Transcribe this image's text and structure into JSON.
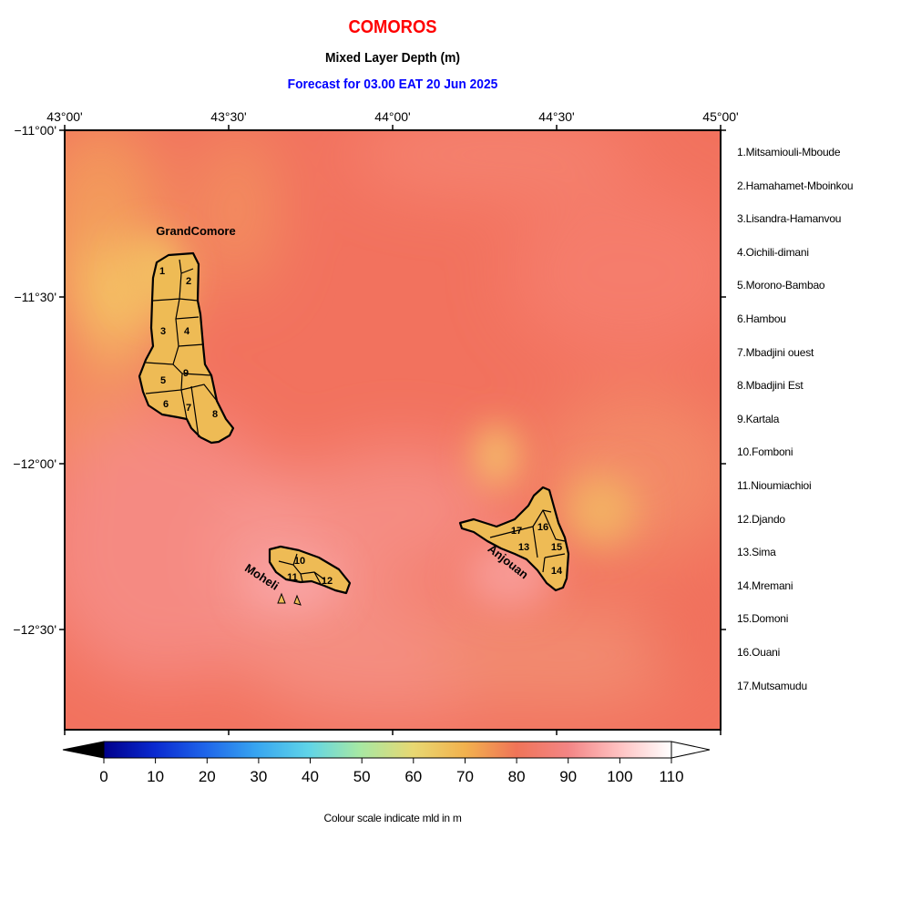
{
  "header": {
    "title": "COMOROS",
    "subtitle": "Mixed Layer Depth (m)",
    "forecast": "Forecast for  03.00 EAT 20 Jun 2025"
  },
  "axes": {
    "lon_ticks": [
      "43°00'",
      "43°30'",
      "44°00'",
      "44°30'",
      "45°00'"
    ],
    "lat_ticks": [
      "−11°00'",
      "−11°30'",
      "−12°00'",
      "−12°30'"
    ]
  },
  "islands": {
    "grand_comore": "GrandComore",
    "moheli": "Moheli",
    "anjouan": "Anjouan"
  },
  "region_numbers": [
    "1",
    "2",
    "3",
    "4",
    "5",
    "6",
    "7",
    "8",
    "9",
    "10",
    "11",
    "12",
    "13",
    "14",
    "15",
    "16",
    "17"
  ],
  "legend": {
    "items": [
      "1.Mitsamiouli-Mboude",
      "2.Hamahamet-Mboinkou",
      "3.Lisandra-Hamanvou",
      "4.Oichili-dimani",
      "5.Morono-Bambao",
      "6.Hambou",
      "7.Mbadjini ouest",
      "8.Mbadjini Est",
      "9.Kartala",
      "10.Fomboni",
      "11.Nioumiachioi",
      "12.Djando",
      "13.Sima",
      "14.Mremani",
      "15.Domoni",
      "16.Ouani",
      "17.Mutsamudu"
    ]
  },
  "colorbar": {
    "ticks": [
      "0",
      "10",
      "20",
      "30",
      "40",
      "50",
      "60",
      "70",
      "80",
      "90",
      "100",
      "110"
    ],
    "caption": "Colour scale indicate mld in m",
    "colors": {
      "0": "#00008b",
      "10": "#0a2ad0",
      "20": "#1f66ea",
      "30": "#38a6f0",
      "40": "#5fd4e8",
      "50": "#a6e8a4",
      "60": "#e8d872",
      "70": "#f2b24e",
      "80": "#f07458",
      "90": "#f38585",
      "100": "#ffc2c2",
      "110": "#ffffff"
    }
  },
  "colors": {
    "title": "#ff0000",
    "forecast": "#0000ff",
    "land": "#eebb55",
    "sea_base": "#f2725e"
  }
}
